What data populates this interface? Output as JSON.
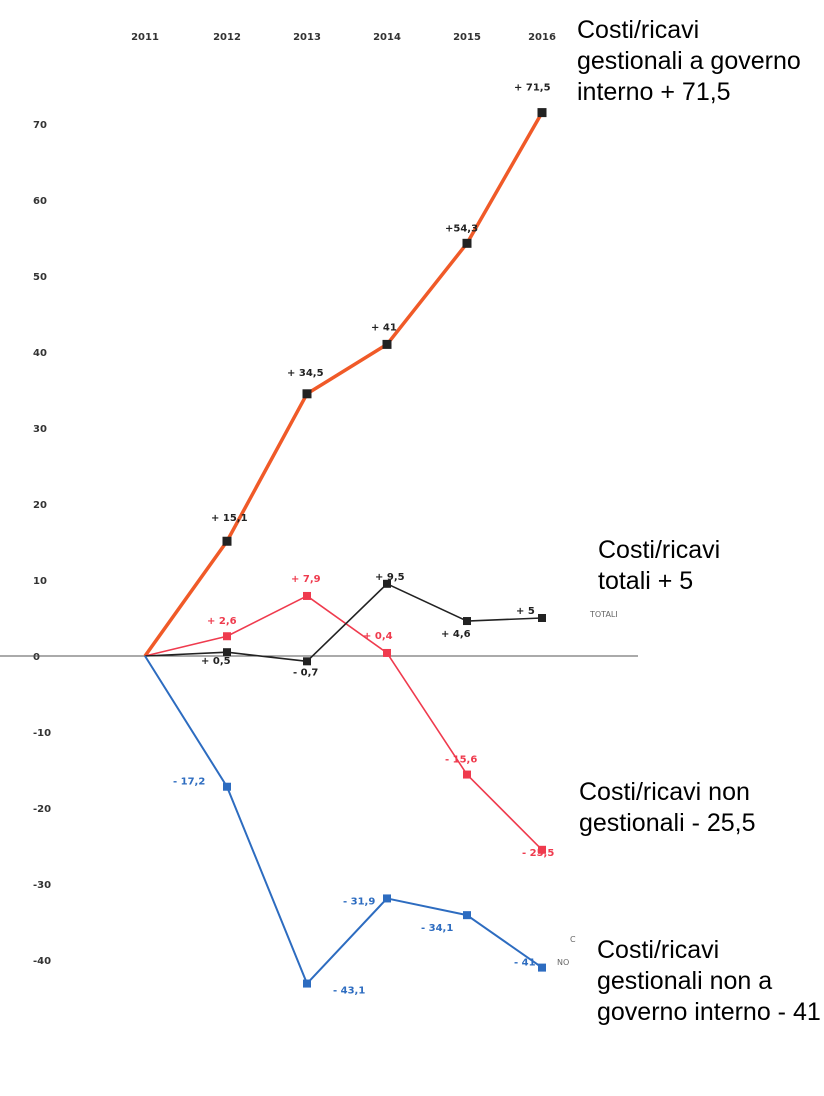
{
  "chart_data": {
    "type": "line",
    "x": [
      "2011",
      "2012",
      "2013",
      "2014",
      "2015",
      "2016"
    ],
    "ylim": [
      -45,
      75
    ],
    "y_ticks": [
      70,
      60,
      50,
      40,
      30,
      20,
      10,
      0,
      -10,
      -20,
      -30,
      -40
    ],
    "series": [
      {
        "name": "Costi/ricavi gestionali a governo interno",
        "color": "#f05a28",
        "values": [
          0,
          15.1,
          34.5,
          41,
          54.3,
          71.5
        ],
        "labels": [
          "",
          "+ 15,1",
          "+ 34,5",
          "+ 41",
          "+54,3",
          "+ 71,5"
        ],
        "label_color": "#222222"
      },
      {
        "name": "Costi/ricavi non gestionali",
        "color": "#ef3b4e",
        "values": [
          0,
          2.6,
          7.9,
          0.4,
          -15.6,
          -25.5
        ],
        "labels": [
          "",
          "+ 2,6",
          "+ 7,9",
          "+ 0,4",
          "- 15,6",
          "- 25,5"
        ],
        "label_color": "#ef3b4e"
      },
      {
        "name": "Costi/ricavi totali",
        "color": "#222222",
        "values": [
          0,
          0.5,
          -0.7,
          9.5,
          4.6,
          5
        ],
        "labels": [
          "",
          "+ 0,5",
          "- 0,7",
          "+ 9,5",
          "+ 4,6",
          "+ 5"
        ],
        "label_color": "#222222"
      },
      {
        "name": "Costi/ricavi gestionali non a governo interno",
        "color": "#2d6cc0",
        "values": [
          0,
          -17.2,
          -43.1,
          -31.9,
          -34.1,
          -41
        ],
        "labels": [
          "",
          "- 17,2",
          "- 43,1",
          "- 31,9",
          "- 34,1",
          "- 41"
        ],
        "label_color": "#2d6cc0"
      }
    ],
    "grid": false,
    "legend": "none"
  },
  "callouts": {
    "orange": "Costi/ricavi gestionali a governo interno + 71,5",
    "totali": "Costi/ricavi totali + 5",
    "red": "Costi/ricavi non gestionali   - 25,5",
    "blue": "Costi/ricavi gestionali non a governo interno - 41"
  },
  "small_tags": {
    "totali": "TOTALI",
    "blue_c": "C",
    "blue_no": "NO"
  }
}
